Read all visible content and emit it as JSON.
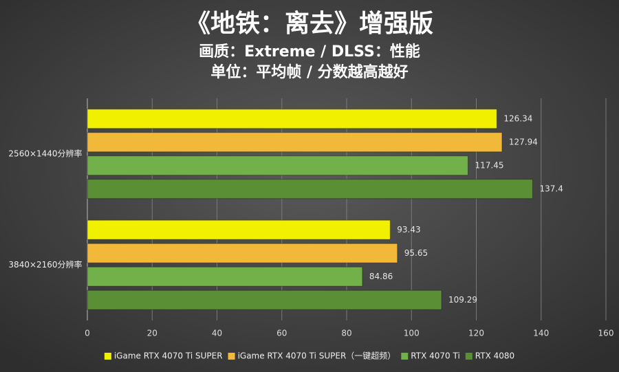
{
  "chart_data": {
    "type": "bar",
    "orientation": "horizontal",
    "title": "《地铁：离去》增强版",
    "subtitles": [
      "画质：Extreme / DLSS：性能",
      "单位：平均帧 / 分数越高越好"
    ],
    "categories": [
      "2560×1440分辨率",
      "3840×2160分辨率"
    ],
    "series": [
      {
        "name": "iGame RTX 4070 Ti SUPER",
        "color": "#f0f000",
        "values": [
          126.34,
          93.43
        ]
      },
      {
        "name": "iGame RTX 4070 Ti SUPER（一键超频）",
        "color": "#f2b83a",
        "values": [
          127.94,
          95.65
        ]
      },
      {
        "name": "RTX 4070 Ti",
        "color": "#72b04a",
        "values": [
          117.45,
          84.86
        ]
      },
      {
        "name": "RTX 4080",
        "color": "#5a8f35",
        "values": [
          137.4,
          109.29
        ]
      }
    ],
    "xlim": [
      0,
      160
    ],
    "xticks": [
      0,
      20,
      40,
      60,
      80,
      100,
      120,
      140,
      160
    ],
    "grid": true,
    "legend": "bottom"
  }
}
